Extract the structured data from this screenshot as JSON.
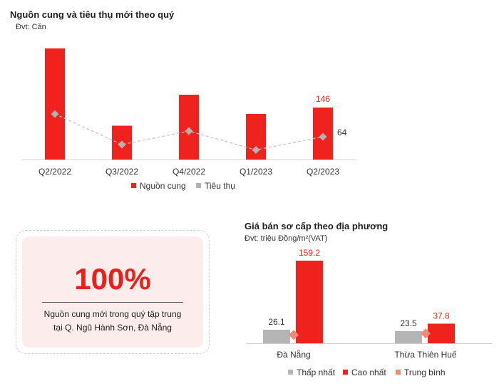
{
  "chart_data": [
    {
      "type": "bar",
      "title": "Nguồn cung và tiêu thụ mới theo quý",
      "subtitle": "Đvt: Căn",
      "categories": [
        "Q2/2022",
        "Q3/2022",
        "Q4/2022",
        "Q1/2023",
        "Q2/2023"
      ],
      "series": [
        {
          "name": "Nguồn cung",
          "type": "bar",
          "color": "#f0221d",
          "values": [
            312,
            95,
            182,
            128,
            146
          ]
        },
        {
          "name": "Tiêu thụ",
          "type": "line",
          "color": "#b3b3b3",
          "values": [
            128,
            42,
            80,
            27,
            64
          ]
        }
      ],
      "data_labels": [
        {
          "category": "Q2/2023",
          "series": "Nguồn cung",
          "text": "146"
        },
        {
          "category": "Q2/2023",
          "series": "Tiêu thụ",
          "text": "64"
        }
      ],
      "ylim": [
        0,
        312
      ],
      "legend": "bottom-center",
      "grid": false
    },
    {
      "type": "bar",
      "title": "Giá bán sơ cấp theo địa phương",
      "subtitle": "Đvt: triệu Đồng/m²(VAT)",
      "categories": [
        "Đà Nẵng",
        "Thừa Thiên Huế"
      ],
      "series": [
        {
          "name": "Thấp nhất",
          "type": "bar",
          "color": "#b5b5b5",
          "values": [
            26.1,
            23.5
          ]
        },
        {
          "name": "Cao nhất",
          "type": "bar",
          "color": "#f0221d",
          "values": [
            159.2,
            37.8
          ]
        },
        {
          "name": "Trung bình",
          "type": "marker",
          "color": "#f08a73"
        }
      ],
      "data_labels": [
        {
          "category": "Đà Nẵng",
          "series": "Thấp nhất",
          "text": "26.1"
        },
        {
          "category": "Đà Nẵng",
          "series": "Cao nhất",
          "text": "159.2"
        },
        {
          "category": "Thừa Thiên Huế",
          "series": "Thấp nhất",
          "text": "23.5"
        },
        {
          "category": "Thừa Thiên Huế",
          "series": "Cao nhất",
          "text": "37.8"
        }
      ],
      "average_marker_level_fraction": [
        0.62,
        0.8
      ],
      "ylim": [
        0,
        159.2
      ],
      "legend": "bottom-center",
      "grid": false
    }
  ],
  "highlight": {
    "value": "100%",
    "text_line1": "Nguồn cung mới trong quý tập trung",
    "text_line2": "tại Q. Ngũ Hành Sơn, Đà Nẵng",
    "accent_color": "#e8211c",
    "background_color": "#fdecec"
  }
}
